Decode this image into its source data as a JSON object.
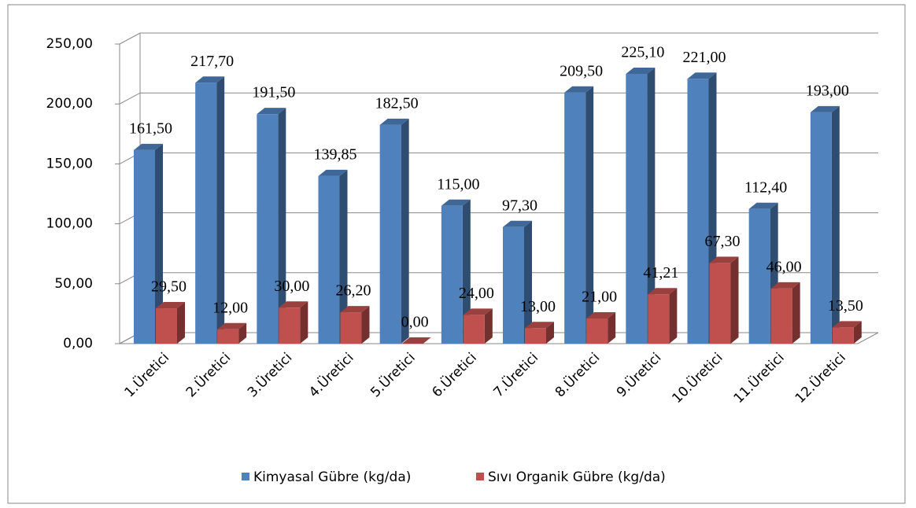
{
  "chart_data": {
    "type": "bar3d",
    "categories": [
      "1.Üretici",
      "2.Üretici",
      "3.Üretici",
      "4.Üretici",
      "5.Üretici",
      "6.Üretici",
      "7.Üretici",
      "8.Üretici",
      "9.Üretici",
      "10.Üretici",
      "11.Üretici",
      "12.Üretici"
    ],
    "series": [
      {
        "name": "Kimyasal Gübre (kg/da)",
        "color": "#4f81bd",
        "values": [
          161.5,
          217.7,
          191.5,
          139.85,
          182.5,
          115,
          97.3,
          209.5,
          225.1,
          221,
          112.4,
          193
        ],
        "value_labels": [
          "161,50",
          "217,70",
          "191,50",
          "139,85",
          "182,50",
          "115,00",
          "97,30",
          "209,50",
          "225,10",
          "221,00",
          "112,40",
          "193,00"
        ]
      },
      {
        "name": "Sıvı Organik Gübre (kg/da)",
        "color": "#c0504d",
        "values": [
          29.5,
          12,
          30,
          26.2,
          0,
          24,
          13,
          21,
          41.21,
          67.3,
          46,
          13.5
        ],
        "value_labels": [
          "29,50",
          "12,00",
          "30,00",
          "26,20",
          "0,00",
          "24,00",
          "13,00",
          "21,00",
          "41,21",
          "67,30",
          "46,00",
          "13,50"
        ]
      }
    ],
    "ylim": [
      0,
      250
    ],
    "yticks": [
      {
        "value": 0,
        "label": "0,00"
      },
      {
        "value": 50,
        "label": "50,00"
      },
      {
        "value": 100,
        "label": "100,00"
      },
      {
        "value": 150,
        "label": "150,00"
      },
      {
        "value": 200,
        "label": "200,00"
      },
      {
        "value": 250,
        "label": "250,00"
      }
    ],
    "grid": true,
    "legend": "bottom"
  }
}
